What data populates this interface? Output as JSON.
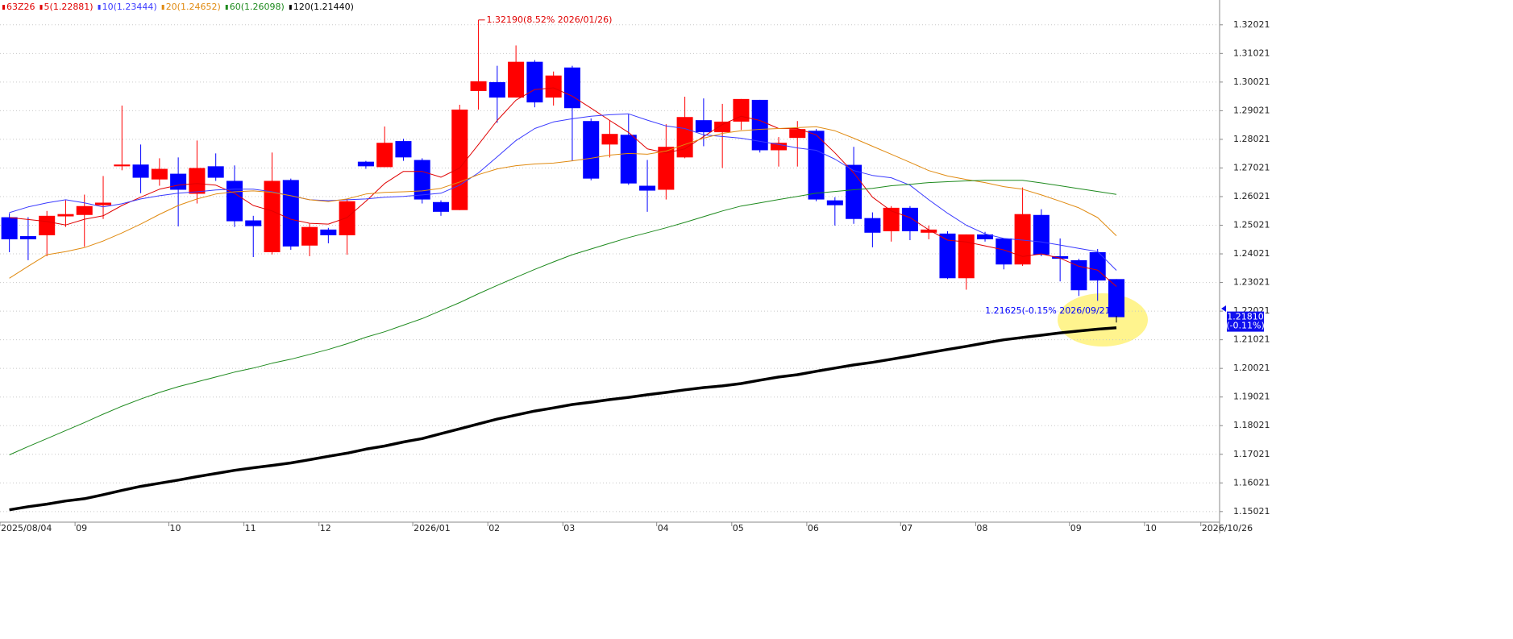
{
  "chart_data": {
    "type": "candlestick",
    "symbol": "63Z26",
    "symbol_color": "#e00000",
    "categories": [
      "2025/08/04",
      null,
      null,
      null,
      "09",
      null,
      null,
      null,
      null,
      "10",
      null,
      null,
      null,
      "11",
      null,
      null,
      null,
      "12",
      null,
      null,
      null,
      null,
      "2026/01",
      null,
      null,
      null,
      "02",
      null,
      null,
      null,
      "03",
      null,
      null,
      null,
      null,
      "04",
      null,
      null,
      null,
      "05",
      null,
      null,
      null,
      "06",
      null,
      null,
      null,
      null,
      "07",
      null,
      null,
      null,
      "08",
      null,
      null,
      null,
      null,
      "09",
      null,
      null,
      null,
      "10",
      null,
      null,
      "2026/10/26"
    ],
    "open": [
      1.253,
      1.2464,
      1.2467,
      1.2533,
      1.2538,
      1.2572,
      1.2708,
      1.2714,
      1.2662,
      1.2682,
      1.2612,
      1.2708,
      1.2657,
      1.2519,
      1.2408,
      1.266,
      1.2431,
      1.2487,
      1.2467,
      1.2724,
      1.2705,
      1.2796,
      1.273,
      1.2583,
      1.2555,
      1.2971,
      1.3002,
      1.2948,
      1.3073,
      1.2948,
      1.3053,
      1.2866,
      1.2784,
      1.2818,
      1.264,
      1.2626,
      1.2739,
      1.2869,
      1.2827,
      1.2864,
      1.294,
      1.2764,
      1.2807,
      1.2832,
      1.2589,
      1.2713,
      1.2527,
      1.2481,
      1.2563,
      1.2476,
      1.2473,
      1.2317,
      1.247,
      1.2456,
      1.2365,
      1.2538,
      1.2394,
      1.238,
      1.2408,
      1.2314,
      null,
      null,
      null,
      null,
      null
    ],
    "high": [
      1.2544,
      1.253,
      1.2552,
      1.2589,
      1.2609,
      1.2674,
      1.292,
      1.2784,
      1.2736,
      1.2739,
      1.2798,
      1.2753,
      1.2711,
      1.2535,
      1.2756,
      1.2665,
      1.2507,
      1.2493,
      1.2595,
      1.2727,
      1.2847,
      1.2804,
      1.2736,
      1.2589,
      1.2923,
      1.3219,
      1.3059,
      1.313,
      1.3079,
      1.3039,
      1.3059,
      1.2875,
      1.2869,
      1.2889,
      1.273,
      1.2855,
      1.2951,
      1.2945,
      1.2926,
      1.2943,
      1.294,
      1.281,
      1.2866,
      1.2838,
      1.26,
      1.2776,
      1.2547,
      1.2569,
      1.2569,
      1.2501,
      1.2481,
      1.247,
      1.2479,
      1.2456,
      1.2634,
      1.2558,
      1.2456,
      1.2385,
      1.2419,
      1.2314,
      null,
      null,
      null,
      null,
      null
    ],
    "low": [
      1.2408,
      1.238,
      1.2394,
      1.2496,
      1.2427,
      1.2524,
      1.2694,
      1.2614,
      1.264,
      1.2498,
      1.2578,
      1.2657,
      1.2496,
      1.2391,
      1.24,
      1.2416,
      1.2394,
      1.2439,
      1.2399,
      1.2699,
      1.2705,
      1.2727,
      1.2578,
      1.2535,
      1.2555,
      1.2906,
      1.286,
      1.2948,
      1.2914,
      1.292,
      1.2727,
      1.2659,
      1.2739,
      1.2643,
      1.2549,
      1.2592,
      1.2736,
      1.2778,
      1.2702,
      1.2835,
      1.2756,
      1.2707,
      1.2707,
      1.2586,
      1.2501,
      1.2507,
      1.2425,
      1.2445,
      1.245,
      1.2453,
      1.2314,
      1.2277,
      1.2445,
      1.2348,
      1.236,
      1.2394,
      1.2306,
      1.2255,
      1.2238,
      1.21625,
      null,
      null,
      null,
      null,
      null
    ],
    "close": [
      1.2453,
      1.2453,
      1.2535,
      1.2541,
      1.2569,
      1.2581,
      1.2714,
      1.2668,
      1.2699,
      1.2626,
      1.2702,
      1.2668,
      1.2516,
      1.2499,
      1.2657,
      1.2428,
      1.2496,
      1.2467,
      1.2586,
      1.2708,
      1.279,
      1.2739,
      1.2592,
      1.2549,
      1.2906,
      1.3005,
      1.2948,
      1.3073,
      1.2931,
      1.3025,
      1.2911,
      1.2665,
      1.2821,
      1.2648,
      1.2623,
      1.2776,
      1.288,
      1.2827,
      1.2864,
      1.2943,
      1.2764,
      1.279,
      1.2838,
      1.2592,
      1.2572,
      1.2524,
      1.2476,
      1.2563,
      1.2481,
      1.2487,
      1.2317,
      1.247,
      1.2453,
      1.2365,
      1.2541,
      1.2399,
      1.2385,
      1.2275,
      1.2309,
      1.2181,
      null,
      null,
      null,
      null,
      null
    ],
    "up_color": "#ff0000",
    "down_color": "#0000ff",
    "series": [
      {
        "name": "5(1.22881)",
        "color": "#e00000",
        "width": 1,
        "values": [
          1.2529,
          1.2522,
          1.2515,
          1.2503,
          1.2523,
          1.2535,
          1.2571,
          1.26,
          1.2628,
          1.2642,
          1.2648,
          1.2642,
          1.2614,
          1.2571,
          1.2552,
          1.2523,
          1.2509,
          1.2506,
          1.2529,
          1.2586,
          1.2648,
          1.269,
          1.269,
          1.267,
          1.2702,
          1.2784,
          1.2868,
          1.2939,
          1.2976,
          1.2982,
          1.2953,
          1.2911,
          1.2868,
          1.2826,
          1.2769,
          1.2755,
          1.2769,
          1.2812,
          1.2854,
          1.2883,
          1.2868,
          1.284,
          1.284,
          1.2818,
          1.2755,
          1.2685,
          1.26,
          1.2552,
          1.2529,
          1.2486,
          1.245,
          1.2444,
          1.243,
          1.2416,
          1.2393,
          1.2402,
          1.2387,
          1.2359,
          1.2345,
          1.22881,
          null,
          null,
          null,
          null,
          null
        ]
      },
      {
        "name": "10(1.23444)",
        "color": "#3a3aff",
        "width": 1,
        "values": [
          1.2546,
          1.2566,
          1.258,
          1.2591,
          1.258,
          1.2566,
          1.2577,
          1.2594,
          1.2605,
          1.2614,
          1.2619,
          1.2625,
          1.2628,
          1.2628,
          1.2619,
          1.2605,
          1.2591,
          1.2588,
          1.2591,
          1.2594,
          1.26,
          1.2603,
          1.2608,
          1.2614,
          1.2642,
          1.2685,
          1.2741,
          1.2798,
          1.284,
          1.2863,
          1.2874,
          1.2883,
          1.2888,
          1.2891,
          1.2869,
          1.2849,
          1.284,
          1.2818,
          1.2812,
          1.2806,
          1.2795,
          1.2784,
          1.2772,
          1.2764,
          1.2733,
          1.2693,
          1.2676,
          1.2668,
          1.2642,
          1.2591,
          1.2544,
          1.2502,
          1.2472,
          1.2456,
          1.245,
          1.2444,
          1.2433,
          1.2421,
          1.241,
          1.23444,
          null,
          null,
          null,
          null,
          null
        ]
      },
      {
        "name": "20(1.24652)",
        "color": "#e08a10",
        "width": 1,
        "values": [
          1.2317,
          1.2359,
          1.2399,
          1.241,
          1.2424,
          1.2447,
          1.2475,
          1.2506,
          1.254,
          1.2571,
          1.2594,
          1.2611,
          1.2619,
          1.2622,
          1.2617,
          1.2605,
          1.2591,
          1.2585,
          1.2594,
          1.2611,
          1.2617,
          1.2619,
          1.2622,
          1.2631,
          1.2653,
          1.2679,
          1.2699,
          1.271,
          1.2716,
          1.2719,
          1.2727,
          1.2736,
          1.2747,
          1.2753,
          1.275,
          1.2761,
          1.2784,
          1.2806,
          1.2823,
          1.2832,
          1.2837,
          1.284,
          1.2843,
          1.2846,
          1.2832,
          1.2806,
          1.2778,
          1.275,
          1.2722,
          1.2693,
          1.2674,
          1.2662,
          1.2651,
          1.2637,
          1.2628,
          1.2608,
          1.2586,
          1.2563,
          1.2529,
          1.24652,
          null,
          null,
          null,
          null,
          null
        ]
      },
      {
        "name": "60(1.26098)",
        "color": "#1e8a1e",
        "width": 1,
        "values": [
          1.17,
          1.1729,
          1.1757,
          1.1785,
          1.1813,
          1.1842,
          1.187,
          1.1895,
          1.1918,
          1.1938,
          1.1955,
          1.1972,
          1.1989,
          1.2003,
          1.202,
          1.2034,
          1.2051,
          1.2068,
          1.2088,
          1.2111,
          1.213,
          1.2153,
          1.2176,
          1.2204,
          1.2232,
          1.2263,
          1.2292,
          1.232,
          1.2348,
          1.2374,
          1.2399,
          1.2419,
          1.2439,
          1.2459,
          1.2476,
          1.2493,
          1.2512,
          1.2532,
          1.2552,
          1.2569,
          1.258,
          1.2592,
          1.2603,
          1.2614,
          1.262,
          1.2626,
          1.2631,
          1.264,
          1.2645,
          1.2651,
          1.2654,
          1.2657,
          1.2659,
          1.2659,
          1.2659,
          1.265,
          1.264,
          1.263,
          1.262,
          1.26098,
          null,
          null,
          null,
          null,
          null
        ]
      },
      {
        "name": "120(1.21440)",
        "color": "#000000",
        "width": 3.5,
        "values": [
          1.1508,
          1.1519,
          1.1528,
          1.1539,
          1.1547,
          1.1561,
          1.1576,
          1.159,
          1.1601,
          1.1612,
          1.1624,
          1.1635,
          1.1646,
          1.1655,
          1.1663,
          1.1672,
          1.1683,
          1.1695,
          1.1706,
          1.172,
          1.1731,
          1.1745,
          1.1757,
          1.1774,
          1.1791,
          1.1808,
          1.1825,
          1.1839,
          1.1853,
          1.1864,
          1.1876,
          1.1884,
          1.1893,
          1.1901,
          1.191,
          1.1918,
          1.1927,
          1.1935,
          1.1941,
          1.1949,
          1.1961,
          1.1972,
          1.198,
          1.1992,
          1.2003,
          1.2014,
          1.2023,
          1.2034,
          1.2045,
          1.2057,
          1.2068,
          1.2079,
          1.2091,
          1.2102,
          1.211,
          1.2118,
          1.2126,
          1.2133,
          1.2139,
          1.2144,
          null,
          null,
          null,
          null,
          null
        ]
      }
    ],
    "ylim": [
      1.1465,
      1.3255
    ],
    "yticks": [
      1.15021,
      1.16021,
      1.17021,
      1.18021,
      1.19021,
      1.20021,
      1.21021,
      1.22021,
      1.23021,
      1.24021,
      1.25021,
      1.26021,
      1.27021,
      1.28021,
      1.29021,
      1.30021,
      1.31021,
      1.32021
    ],
    "grid": true,
    "annotations": [
      {
        "text": "1.32190(8.52% 2026/01/26)",
        "value": 1.3219,
        "of": "high",
        "color": "#e00000"
      },
      {
        "text": "1.21625(-0.15% 2026/09/21)",
        "value": 1.21625,
        "of": "low",
        "color": "#0000ff"
      }
    ],
    "last_price": {
      "value": 1.2181,
      "label": "1.21810",
      "change": "(-0.11%)",
      "color": "#1010ee"
    }
  }
}
